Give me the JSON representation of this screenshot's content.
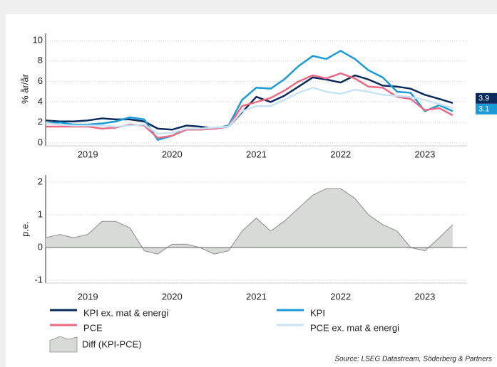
{
  "chart_data": [
    {
      "type": "line",
      "y_label": "% år/år",
      "x": [
        2019,
        2019.17,
        2019.33,
        2019.5,
        2019.67,
        2019.83,
        2020,
        2020.17,
        2020.33,
        2020.5,
        2020.67,
        2020.83,
        2021,
        2021.17,
        2021.33,
        2021.5,
        2021.67,
        2021.83,
        2022,
        2022.17,
        2022.33,
        2022.5,
        2022.67,
        2022.83,
        2023,
        2023.17,
        2023.33,
        2023.5,
        2023.67,
        2023.83
      ],
      "xlim": [
        2019,
        2024
      ],
      "xticks": [
        {
          "value": 2019.5,
          "label": "2019"
        },
        {
          "value": 2020.5,
          "label": "2020"
        },
        {
          "value": 2021.5,
          "label": "2021"
        },
        {
          "value": 2022.5,
          "label": "2022"
        },
        {
          "value": 2023.5,
          "label": "2023"
        }
      ],
      "ylim": [
        0,
        10
      ],
      "yticks": [
        0,
        2,
        4,
        6,
        8,
        10
      ],
      "grid": true,
      "series": [
        {
          "name": "KPI ex. mat & energi",
          "color": "#0b2a5c",
          "end_label": true,
          "values": [
            2.2,
            2.1,
            2.1,
            2.2,
            2.4,
            2.3,
            2.3,
            2.1,
            1.4,
            1.3,
            1.7,
            1.6,
            1.4,
            1.6,
            3.0,
            4.5,
            4.0,
            4.6,
            5.5,
            6.4,
            6.2,
            5.9,
            6.6,
            6.2,
            5.6,
            5.5,
            5.3,
            4.7,
            4.3,
            3.9
          ]
        },
        {
          "name": "KPI",
          "color": "#1a9ad6",
          "end_label": true,
          "values": [
            1.9,
            2.0,
            1.8,
            1.8,
            1.9,
            2.1,
            2.5,
            2.3,
            0.3,
            0.7,
            1.4,
            1.3,
            1.4,
            1.7,
            4.2,
            5.4,
            5.3,
            6.2,
            7.5,
            8.5,
            8.2,
            9.0,
            8.2,
            7.1,
            6.4,
            5.0,
            4.9,
            3.1,
            3.7,
            3.1
          ]
        },
        {
          "name": "PCE",
          "color": "#ee6a84",
          "values": [
            1.6,
            1.6,
            1.6,
            1.6,
            1.4,
            1.5,
            1.8,
            1.7,
            0.5,
            0.7,
            1.3,
            1.3,
            1.4,
            1.6,
            3.6,
            4.0,
            4.4,
            5.1,
            6.0,
            6.6,
            6.3,
            6.8,
            6.3,
            5.5,
            5.4,
            4.5,
            4.3,
            3.2,
            3.4,
            2.7
          ]
        },
        {
          "name": "PCE ex. mat & energi",
          "color": "#c8e4f4",
          "values": [
            1.9,
            1.8,
            1.7,
            1.7,
            1.7,
            1.6,
            1.7,
            1.8,
            0.9,
            1.0,
            1.4,
            1.4,
            1.5,
            1.6,
            3.1,
            3.6,
            3.6,
            4.2,
            4.9,
            5.4,
            5.0,
            4.8,
            5.2,
            5.0,
            4.7,
            4.6,
            4.5,
            4.2,
            3.8,
            3.4
          ]
        }
      ]
    },
    {
      "type": "area",
      "y_label": "p.e.",
      "x": [
        2019,
        2019.17,
        2019.33,
        2019.5,
        2019.67,
        2019.83,
        2020,
        2020.17,
        2020.33,
        2020.5,
        2020.67,
        2020.83,
        2021,
        2021.17,
        2021.33,
        2021.5,
        2021.67,
        2021.83,
        2022,
        2022.17,
        2022.33,
        2022.5,
        2022.67,
        2022.83,
        2023,
        2023.17,
        2023.33,
        2023.5,
        2023.67,
        2023.83
      ],
      "xlim": [
        2019,
        2024
      ],
      "xticks": [
        {
          "value": 2019.5,
          "label": "2019"
        },
        {
          "value": 2020.5,
          "label": "2020"
        },
        {
          "value": 2021.5,
          "label": "2021"
        },
        {
          "value": 2022.5,
          "label": "2022"
        },
        {
          "value": 2023.5,
          "label": "2023"
        }
      ],
      "ylim": [
        -1,
        2
      ],
      "yticks": [
        -1,
        0,
        1,
        2
      ],
      "grid": true,
      "series": [
        {
          "name": "Diff (KPI-PCE)",
          "color": "#d8dad8",
          "line_color": "#8c8c8c",
          "values": [
            0.3,
            0.4,
            0.3,
            0.4,
            0.8,
            0.8,
            0.6,
            -0.1,
            -0.2,
            0.1,
            0.1,
            0.0,
            -0.2,
            -0.1,
            0.5,
            0.9,
            0.5,
            0.8,
            1.2,
            1.6,
            1.8,
            1.8,
            1.5,
            1.0,
            0.7,
            0.5,
            0.0,
            -0.1,
            0.3,
            0.7
          ]
        }
      ]
    }
  ],
  "source": "Source: LSEG Datastream, Söderberg & Partners"
}
